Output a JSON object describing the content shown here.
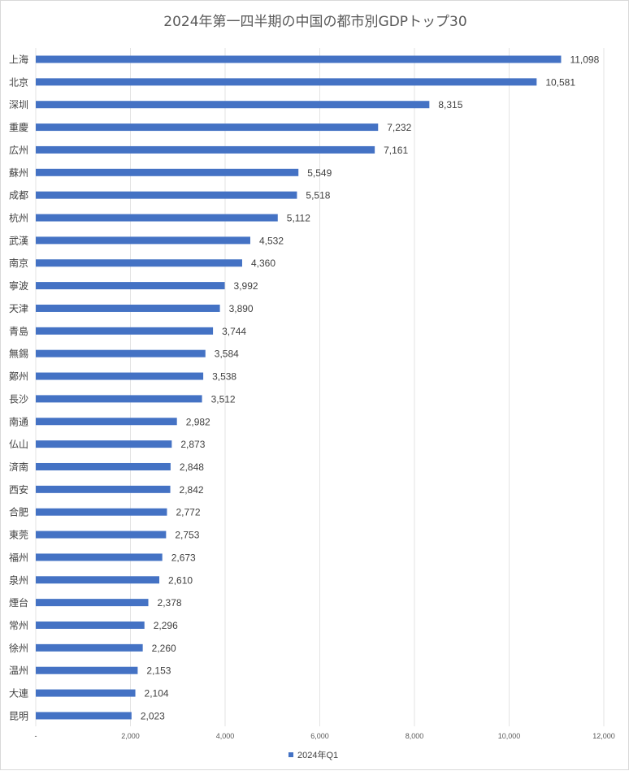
{
  "chart_data": {
    "type": "bar",
    "orientation": "horizontal",
    "title": "2024年第一四半期の中国の都市別GDPトップ30",
    "categories": [
      "上海",
      "北京",
      "深圳",
      "重慶",
      "広州",
      "蘇州",
      "成都",
      "杭州",
      "武漢",
      "南京",
      "寧波",
      "天津",
      "青島",
      "無錫",
      "鄭州",
      "長沙",
      "南通",
      "仏山",
      "済南",
      "西安",
      "合肥",
      "東莞",
      "福州",
      "泉州",
      "煙台",
      "常州",
      "徐州",
      "温州",
      "大連",
      "昆明"
    ],
    "series": [
      {
        "name": "2024年Q1",
        "color": "#4472c4",
        "values": [
          11098,
          10581,
          8315,
          7232,
          7161,
          5549,
          5518,
          5112,
          4532,
          4360,
          3992,
          3890,
          3744,
          3584,
          3538,
          3512,
          2982,
          2873,
          2848,
          2842,
          2772,
          2753,
          2673,
          2610,
          2378,
          2296,
          2260,
          2153,
          2104,
          2023
        ],
        "labels": [
          "11,098",
          "10,581",
          "8,315",
          "7,232",
          "7,161",
          "5,549",
          "5,518",
          "5,112",
          "4,532",
          "4,360",
          "3,992",
          "3,890",
          "3,744",
          "3,584",
          "3,538",
          "3,512",
          "2,982",
          "2,873",
          "2,848",
          "2,842",
          "2,772",
          "2,753",
          "2,673",
          "2,610",
          "2,378",
          "2,296",
          "2,260",
          "2,153",
          "2,104",
          "2,023"
        ]
      }
    ],
    "xlim": [
      0,
      12000
    ],
    "x_ticks": [
      0,
      2000,
      4000,
      6000,
      8000,
      10000,
      12000
    ],
    "x_tick_labels": [
      "-",
      "2,000",
      "4,000",
      "6,000",
      "8,000",
      "10,000",
      "12,000"
    ],
    "grid": true,
    "legend_position": "bottom"
  }
}
